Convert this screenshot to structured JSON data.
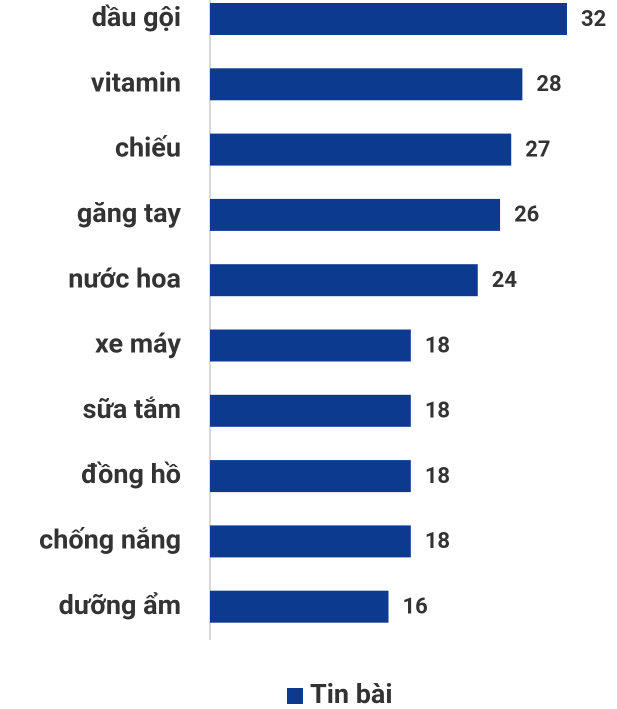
{
  "chart_data": {
    "type": "bar",
    "orientation": "horizontal",
    "categories": [
      "dầu gội",
      "vitamin",
      "chiếu",
      "găng tay",
      "nước hoa",
      "xe máy",
      "sữa tắm",
      "đồng hồ",
      "chống nắng",
      "dưỡng ẩm"
    ],
    "series": [
      {
        "name": "Tin bài",
        "color": "#0b3a8f",
        "values": [
          32,
          28,
          27,
          26,
          24,
          18,
          18,
          18,
          18,
          16
        ]
      }
    ],
    "legend": "bottom"
  }
}
